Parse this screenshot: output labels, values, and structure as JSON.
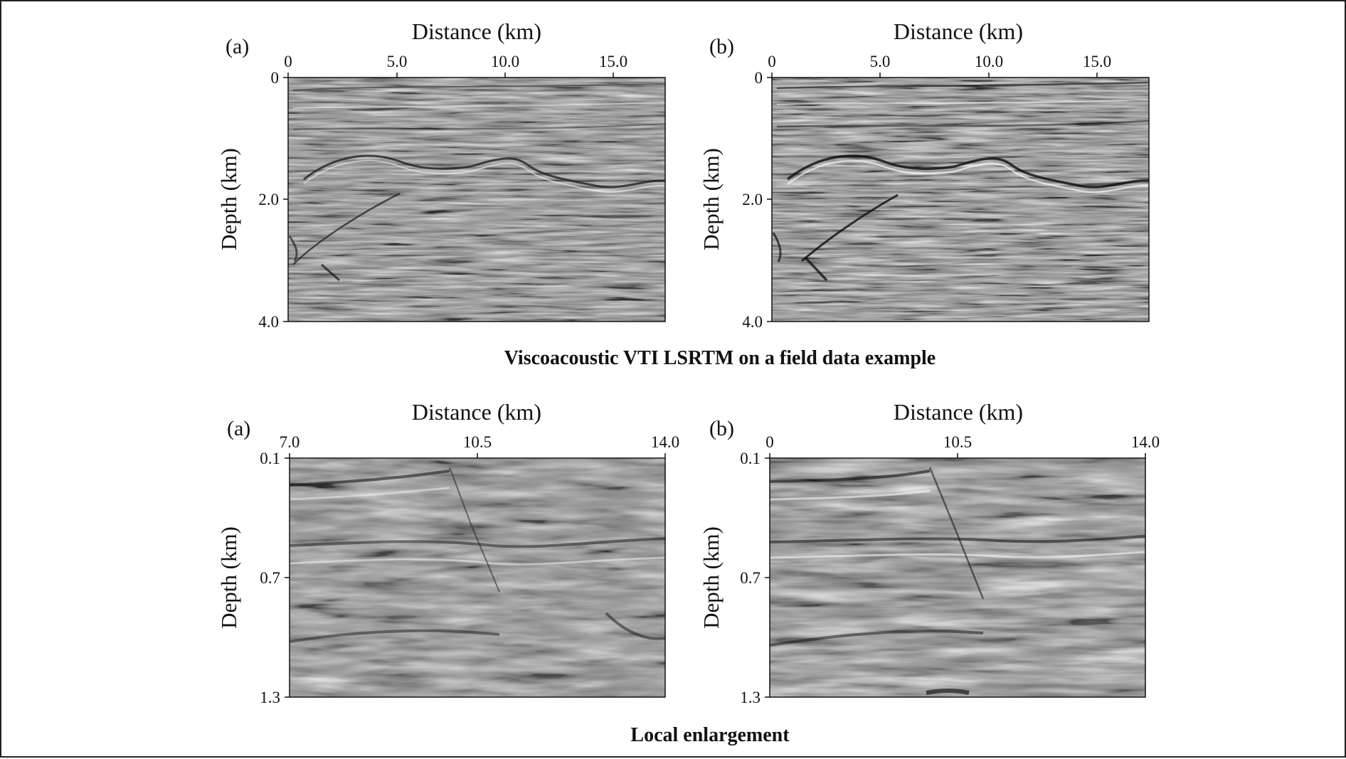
{
  "figure": {
    "top_caption": "Viscoacoustic VTI LSRTM on a field data example",
    "bottom_caption": "Local enlargement"
  },
  "panels": [
    {
      "id": "top-a",
      "tag": "(a)",
      "xlabel": "Distance (km)",
      "ylabel": "Depth (km)",
      "xticks": [
        "0",
        "5.0",
        "10.0",
        "15.0"
      ],
      "yticks": [
        "0",
        "2.0",
        "4.0"
      ]
    },
    {
      "id": "top-b",
      "tag": "(b)",
      "xlabel": "Distance (km)",
      "ylabel": "Depth (km)",
      "xticks": [
        "0",
        "5.0",
        "10.0",
        "15.0"
      ],
      "yticks": [
        "0",
        "2.0",
        "4.0"
      ]
    },
    {
      "id": "bottom-a",
      "tag": "(a)",
      "xlabel": "Distance (km)",
      "ylabel": "Depth (km)",
      "xticks": [
        "7.0",
        "10.5",
        "14.0"
      ],
      "yticks": [
        "0.1",
        "0.7",
        "1.3"
      ]
    },
    {
      "id": "bottom-b",
      "tag": "(b)",
      "xlabel": "Distance (km)",
      "ylabel": "Depth (km)",
      "xticks": [
        "0",
        "10.5",
        "14.0"
      ],
      "yticks": [
        "0.1",
        "0.7",
        "1.3"
      ]
    }
  ],
  "colors": {
    "background": "#ffffff",
    "seismic_mid": "#8a8a8a",
    "ink": "#111111"
  }
}
